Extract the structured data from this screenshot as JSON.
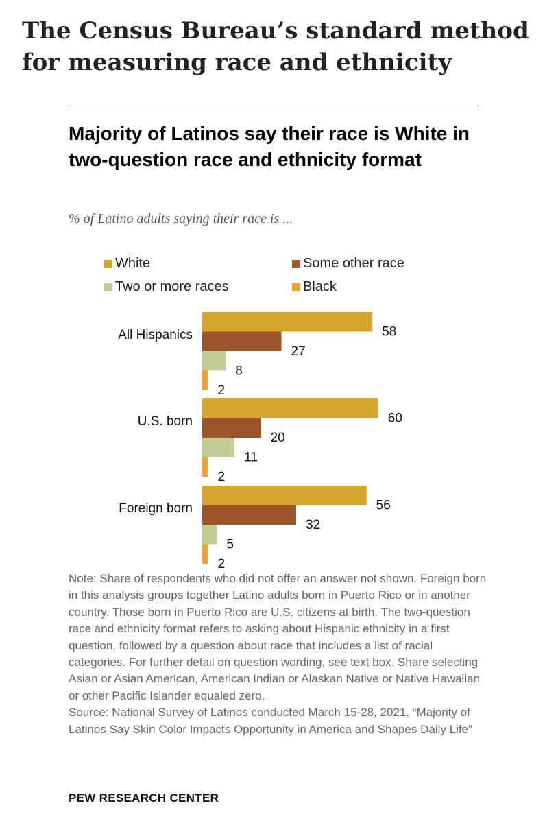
{
  "page": {
    "title": "The Census Bureau’s standard method for measuring race and ethnicity"
  },
  "chart_data": {
    "type": "bar",
    "orientation": "horizontal",
    "title": "Majority of Latinos say their race is White in two-question race and ethnicity format",
    "subtitle": "% of Latino adults saying their race is ...",
    "categories": [
      "All Hispanics",
      "U.S. born",
      "Foreign born"
    ],
    "series": [
      {
        "name": "White",
        "color": "#D4A72C",
        "values": [
          58,
          60,
          56
        ]
      },
      {
        "name": "Some other race",
        "color": "#A0542A",
        "values": [
          27,
          20,
          32
        ]
      },
      {
        "name": "Two or more races",
        "color": "#C5CC96",
        "values": [
          8,
          11,
          5
        ]
      },
      {
        "name": "Black",
        "color": "#EFA22F",
        "values": [
          2,
          2,
          2
        ]
      }
    ],
    "xlim": [
      0,
      100
    ],
    "grid": false,
    "legend_position": "top"
  },
  "footer": {
    "note": "Note: Share of respondents who did not offer an answer not shown. Foreign born in this analysis groups together Latino adults born in Puerto Rico or in another country. Those born in Puerto Rico are U.S. citizens at birth. The two-question race and ethnicity format refers to asking about Hispanic ethnicity in a first question, followed by a question about race that includes a list of racial categories. For further detail on question wording, see text box. Share selecting Asian or Asian American, American Indian or Alaskan Native or Native Hawaiian or other Pacific Islander equaled zero.",
    "source": "Source: National Survey of Latinos conducted March 15-28, 2021. “Majority of Latinos Say Skin Color Impacts Opportunity in America and Shapes Daily Life”",
    "org": "PEW RESEARCH CENTER"
  }
}
